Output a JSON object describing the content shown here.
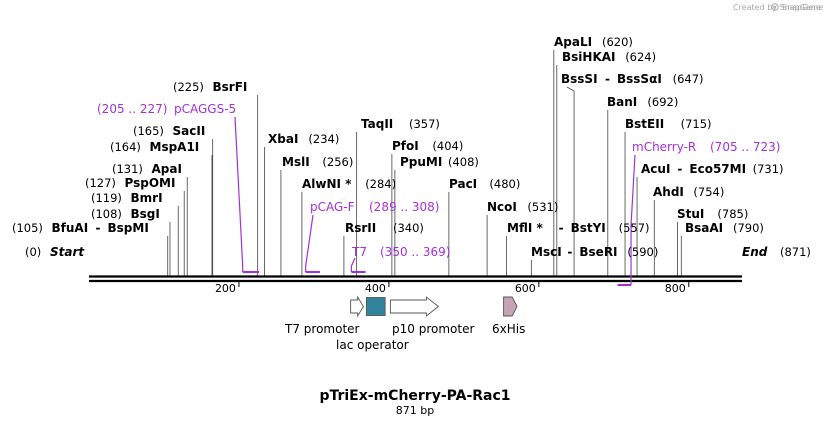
{
  "credit": "Created by SnapGene",
  "title": "pTriEx-mCherry-PA-Rac1",
  "length_label": "871 bp",
  "ends": {
    "start_pos": "(0)",
    "start_label": "Start",
    "end_label": "End",
    "end_pos": "(871)"
  },
  "axis": {
    "ticks": [
      200,
      400,
      600,
      800
    ],
    "length_bp": 871
  },
  "sites": [
    {
      "id": "bfuai",
      "names": [
        "BfuAI",
        "BspMI"
      ],
      "pos": 105,
      "pos_label": "(105)",
      "pos_side": "left"
    },
    {
      "id": "bsgi",
      "names": [
        "BsgI"
      ],
      "pos": 108,
      "pos_label": "(108)",
      "pos_side": "left"
    },
    {
      "id": "bmri",
      "names": [
        "BmrI"
      ],
      "pos": 119,
      "pos_label": "(119)",
      "pos_side": "left"
    },
    {
      "id": "pspomi",
      "names": [
        "PspOMI"
      ],
      "pos": 127,
      "pos_label": "(127)",
      "pos_side": "left"
    },
    {
      "id": "apai",
      "names": [
        "ApaI"
      ],
      "pos": 131,
      "pos_label": "(131)",
      "pos_side": "left"
    },
    {
      "id": "mspa1i",
      "names": [
        "MspA1I"
      ],
      "pos": 164,
      "pos_label": "(164)",
      "pos_side": "left"
    },
    {
      "id": "sacii",
      "names": [
        "SacII"
      ],
      "pos": 165,
      "pos_label": "(165)",
      "pos_side": "left"
    },
    {
      "id": "bsrfi",
      "names": [
        "BsrFI"
      ],
      "pos": 225,
      "pos_label": "(225)",
      "pos_side": "left"
    },
    {
      "id": "xbai",
      "names": [
        "XbaI"
      ],
      "pos": 234,
      "pos_label": "(234)",
      "pos_side": "right"
    },
    {
      "id": "msli",
      "names": [
        "MslI"
      ],
      "pos": 256,
      "pos_label": "(256)",
      "pos_side": "right"
    },
    {
      "id": "alwni",
      "names": [
        "AlwNI *"
      ],
      "pos": 284,
      "pos_label": "(284)",
      "pos_side": "right"
    },
    {
      "id": "rsrii",
      "names": [
        "RsrII"
      ],
      "pos": 340,
      "pos_label": "(340)",
      "pos_side": "right"
    },
    {
      "id": "taqii",
      "names": [
        "TaqII"
      ],
      "pos": 357,
      "pos_label": "(357)",
      "pos_side": "right"
    },
    {
      "id": "pfoi",
      "names": [
        "PfoI"
      ],
      "pos": 404,
      "pos_label": "(404)",
      "pos_side": "right"
    },
    {
      "id": "ppumi",
      "names": [
        "PpuMI"
      ],
      "pos": 408,
      "pos_label": "(408)",
      "pos_side": "right"
    },
    {
      "id": "paci",
      "names": [
        "PacI"
      ],
      "pos": 480,
      "pos_label": "(480)",
      "pos_side": "right"
    },
    {
      "id": "ncoi",
      "names": [
        "NcoI"
      ],
      "pos": 531,
      "pos_label": "(531)",
      "pos_side": "right"
    },
    {
      "id": "mfli",
      "names": [
        "MflI *",
        "BstYI"
      ],
      "pos": 557,
      "pos_label": "(557)",
      "pos_side": "right"
    },
    {
      "id": "msci",
      "names": [
        "MscI",
        "BseRI"
      ],
      "pos": 590,
      "pos_label": "(590)",
      "pos_side": "right"
    },
    {
      "id": "apali",
      "names": [
        "ApaLI"
      ],
      "pos": 620,
      "pos_label": "(620)",
      "pos_side": "right"
    },
    {
      "id": "bsihkai",
      "names": [
        "BsiHKAI"
      ],
      "pos": 624,
      "pos_label": "(624)",
      "pos_side": "right"
    },
    {
      "id": "bsssi",
      "names": [
        "BssSI",
        "BssSαI"
      ],
      "pos": 647,
      "pos_label": "(647)",
      "pos_side": "right"
    },
    {
      "id": "bani",
      "names": [
        "BanI"
      ],
      "pos": 692,
      "pos_label": "(692)",
      "pos_side": "right"
    },
    {
      "id": "bsteii",
      "names": [
        "BstEII"
      ],
      "pos": 715,
      "pos_label": "(715)",
      "pos_side": "right"
    },
    {
      "id": "acui",
      "names": [
        "AcuI",
        "Eco57MI"
      ],
      "pos": 731,
      "pos_label": "(731)",
      "pos_side": "right"
    },
    {
      "id": "ahdi",
      "names": [
        "AhdI"
      ],
      "pos": 754,
      "pos_label": "(754)",
      "pos_side": "right"
    },
    {
      "id": "stui",
      "names": [
        "StuI"
      ],
      "pos": 785,
      "pos_label": "(785)",
      "pos_side": "right"
    },
    {
      "id": "bsaai",
      "names": [
        "BsaAI"
      ],
      "pos": 790,
      "pos_label": "(790)",
      "pos_side": "right"
    }
  ],
  "primers": [
    {
      "id": "pcaggs5",
      "name": "pCAGGS-5",
      "range": "(205 .. 227)",
      "start": 205,
      "end": 227,
      "direction": "forward"
    },
    {
      "id": "pcagf",
      "name": "pCAG-F",
      "range": "(289 .. 308)",
      "start": 289,
      "end": 308,
      "direction": "forward"
    },
    {
      "id": "t7",
      "name": "T7",
      "range": "(350 .. 369)",
      "start": 350,
      "end": 369,
      "direction": "forward"
    },
    {
      "id": "mcherryr",
      "name": "mCherry-R",
      "range": "(705 .. 723)",
      "start": 705,
      "end": 723,
      "direction": "reverse"
    }
  ],
  "features": [
    {
      "id": "t7-promoter",
      "label": "T7 promoter",
      "start": 349,
      "end": 366,
      "type": "promoter",
      "color": "#ffffff"
    },
    {
      "id": "lac-operator",
      "label": "lac operator",
      "start": 370,
      "end": 395,
      "type": "box",
      "color": "#31849b"
    },
    {
      "id": "p10-promoter",
      "label": "p10 promoter",
      "start": 402,
      "end": 466,
      "type": "promoter",
      "color": "#ffffff"
    },
    {
      "id": "6xhis",
      "label": "6xHis",
      "start": 553,
      "end": 571,
      "type": "tag",
      "color": "#c7a3b5"
    }
  ],
  "colors": {
    "primer": "#a431d8",
    "backbone": "#000000",
    "lac_operator": "#31849b",
    "his_tag": "#c7a3b5"
  }
}
